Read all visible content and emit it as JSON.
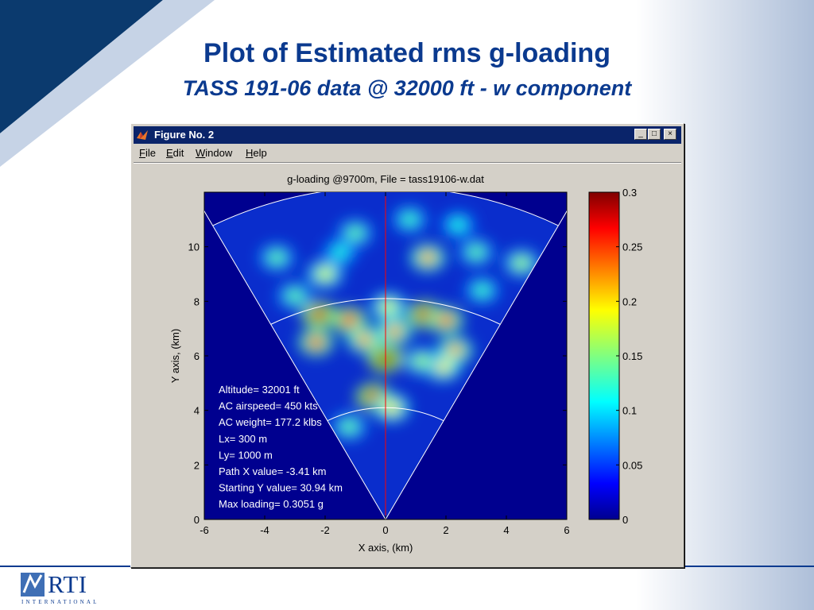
{
  "slide": {
    "title_line1": "Plot of Estimated rms g-loading",
    "title_line2": "TASS 191-06 data @ 32000 ft  - w component",
    "logo_text": "RTI",
    "logo_sub": "INTERNATIONAL"
  },
  "window": {
    "title": "Figure No. 2",
    "menus": [
      "File",
      "Edit",
      "Window",
      "Help"
    ],
    "minimize_label": "_",
    "maximize_label": "□",
    "close_label": "×"
  },
  "chart_data": {
    "type": "heatmap",
    "title": "g-loading @9700m, File = tass19106-w.dat",
    "xlabel": "X axis, (km)",
    "ylabel": "Y axis, (km)",
    "xlim": [
      -6,
      6
    ],
    "ylim": [
      0,
      12
    ],
    "xticks": [
      "-6",
      "-4",
      "-2",
      "0",
      "2",
      "4",
      "6"
    ],
    "yticks": [
      "0",
      "2",
      "4",
      "6",
      "8",
      "10"
    ],
    "colorbar": {
      "min": 0,
      "max": 0.3,
      "ticks": [
        "0",
        "0.05",
        "0.1",
        "0.15",
        "0.2",
        "0.25",
        "0.3"
      ],
      "colormap": "jet"
    },
    "sector": {
      "apex": [
        0,
        0
      ],
      "edge_left": [
        -6,
        11.3
      ],
      "edge_right": [
        6,
        11.3
      ],
      "range_rings_km": [
        4.1,
        8.1,
        12.2
      ],
      "center_line_x": 0,
      "center_line_color": "#ff0000"
    },
    "hotspots": [
      {
        "x": -2.2,
        "y": 7.5,
        "v": 0.28
      },
      {
        "x": -2.3,
        "y": 6.5,
        "v": 0.24
      },
      {
        "x": -1.2,
        "y": 7.3,
        "v": 0.26
      },
      {
        "x": -0.7,
        "y": 6.6,
        "v": 0.22
      },
      {
        "x": 0.0,
        "y": 5.9,
        "v": 0.3
      },
      {
        "x": 0.3,
        "y": 6.9,
        "v": 0.22
      },
      {
        "x": 0.1,
        "y": 7.8,
        "v": 0.18
      },
      {
        "x": -0.4,
        "y": 4.5,
        "v": 0.28
      },
      {
        "x": 0.2,
        "y": 4.1,
        "v": 0.2
      },
      {
        "x": 1.3,
        "y": 7.5,
        "v": 0.28
      },
      {
        "x": 2.0,
        "y": 7.3,
        "v": 0.24
      },
      {
        "x": 2.3,
        "y": 6.2,
        "v": 0.22
      },
      {
        "x": 1.9,
        "y": 5.6,
        "v": 0.2
      },
      {
        "x": 1.2,
        "y": 5.8,
        "v": 0.16
      },
      {
        "x": -3.0,
        "y": 8.2,
        "v": 0.14
      },
      {
        "x": -2.0,
        "y": 9.0,
        "v": 0.18
      },
      {
        "x": 1.4,
        "y": 9.6,
        "v": 0.22
      },
      {
        "x": -3.6,
        "y": 9.6,
        "v": 0.14
      },
      {
        "x": -1.0,
        "y": 10.5,
        "v": 0.14
      },
      {
        "x": 0.8,
        "y": 11.0,
        "v": 0.13
      },
      {
        "x": 3.0,
        "y": 9.8,
        "v": 0.14
      },
      {
        "x": 4.5,
        "y": 9.4,
        "v": 0.16
      },
      {
        "x": 3.2,
        "y": 8.4,
        "v": 0.13
      },
      {
        "x": -1.2,
        "y": 3.4,
        "v": 0.14
      },
      {
        "x": -1.5,
        "y": 9.8,
        "v": 0.12
      },
      {
        "x": 2.4,
        "y": 10.8,
        "v": 0.12
      }
    ],
    "annotations": [
      "Altitude= 32001 ft",
      "AC airspeed= 450 kts",
      "AC weight= 177.2 klbs",
      "Lx= 300 m",
      "Ly= 1000 m",
      "Path X value= -3.41 km",
      "Starting Y value= 30.94 km",
      "Max loading= 0.3051 g"
    ]
  }
}
